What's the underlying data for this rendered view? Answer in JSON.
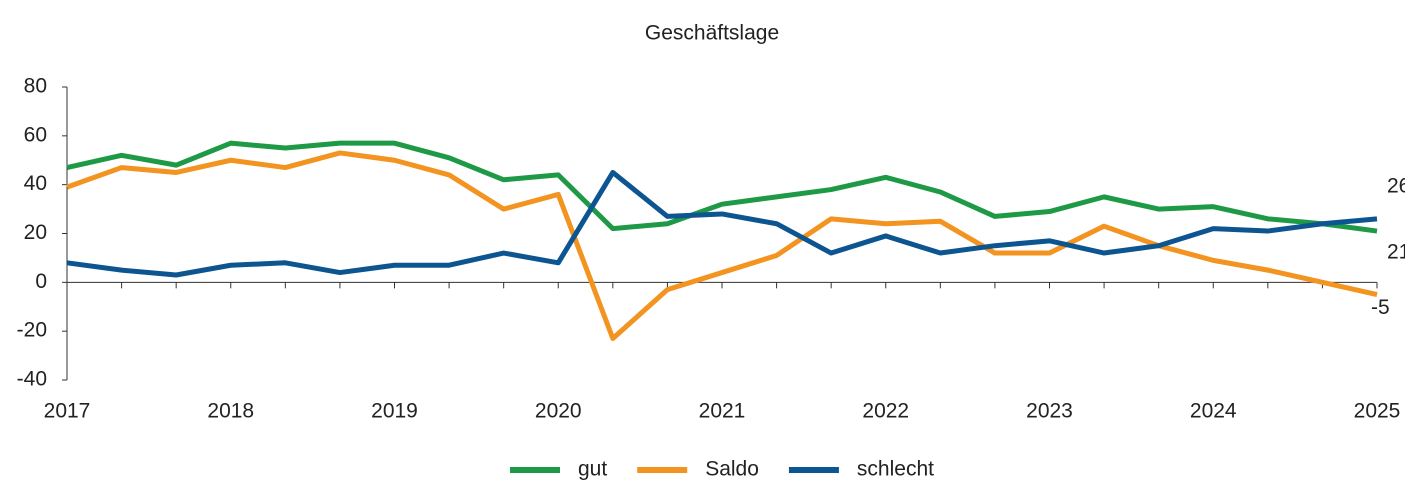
{
  "chart_data": {
    "type": "line",
    "title": "Geschäftslage",
    "categories": [
      "2017",
      null,
      null,
      "2018",
      null,
      null,
      "2019",
      null,
      null,
      "2020",
      null,
      null,
      "2021",
      null,
      null,
      "2022",
      null,
      null,
      "2023",
      null,
      null,
      "2024",
      null,
      null,
      "2025"
    ],
    "series": [
      {
        "name": "gut",
        "color": "#1e9a47",
        "values": [
          47,
          52,
          48,
          57,
          55,
          57,
          57,
          51,
          42,
          44,
          22,
          24,
          32,
          35,
          38,
          43,
          37,
          27,
          29,
          35,
          30,
          31,
          26,
          24,
          21
        ]
      },
      {
        "name": "Saldo",
        "color": "#f39320",
        "values": [
          39,
          47,
          45,
          50,
          47,
          53,
          50,
          44,
          30,
          36,
          -23,
          -3,
          4,
          11,
          26,
          24,
          25,
          12,
          12,
          23,
          15,
          9,
          5,
          0,
          -5
        ]
      },
      {
        "name": "schlecht",
        "color": "#0d5590",
        "values": [
          8,
          5,
          3,
          7,
          8,
          4,
          7,
          7,
          12,
          8,
          45,
          27,
          28,
          24,
          12,
          19,
          12,
          15,
          17,
          12,
          15,
          22,
          21,
          24,
          26
        ]
      }
    ],
    "ylim": [
      -40,
      80
    ],
    "yticks": [
      -40,
      -20,
      0,
      20,
      40,
      60,
      80
    ],
    "grid": false,
    "legend": "bottom"
  }
}
